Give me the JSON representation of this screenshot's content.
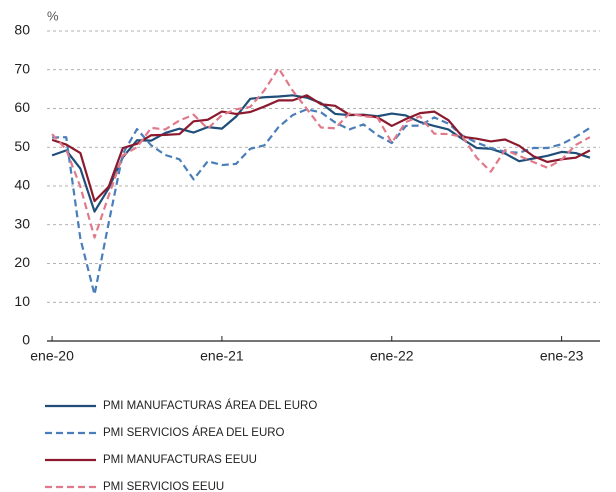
{
  "chart_data": {
    "type": "line",
    "y_label": "%",
    "categories": [
      "ene-20",
      null,
      null,
      null,
      null,
      null,
      null,
      null,
      null,
      null,
      null,
      null,
      "ene-21",
      null,
      null,
      null,
      null,
      null,
      null,
      null,
      null,
      null,
      null,
      null,
      "ene-22",
      null,
      null,
      null,
      null,
      null,
      null,
      null,
      null,
      null,
      null,
      null,
      "ene-23",
      null,
      null
    ],
    "series": [
      {
        "name": "PMI MANUFACTURAS ÁREA DEL EURO",
        "color": "#1f4e79",
        "dashed": false,
        "values": [
          47.9,
          49.2,
          44.5,
          33.4,
          39.4,
          47.4,
          51.8,
          51.7,
          53.7,
          54.8,
          53.8,
          55.2,
          54.8,
          57.9,
          62.5,
          62.9,
          63.1,
          63.4,
          62.8,
          61.4,
          58.6,
          58.3,
          58.4,
          58.0,
          58.7,
          58.2,
          56.5,
          55.5,
          54.6,
          52.1,
          49.8,
          49.6,
          48.4,
          46.4,
          47.1,
          47.8,
          48.8,
          48.5,
          47.3
        ]
      },
      {
        "name": "PMI SERVICIOS ÁREA DEL EURO",
        "color": "#4a7ebb",
        "dashed": true,
        "values": [
          52.5,
          52.6,
          26.4,
          12.0,
          30.5,
          48.3,
          54.7,
          50.5,
          48.0,
          46.9,
          41.7,
          46.4,
          45.4,
          45.7,
          49.6,
          50.5,
          55.2,
          58.3,
          59.8,
          59.0,
          56.4,
          54.6,
          55.9,
          53.1,
          51.1,
          55.5,
          55.6,
          57.7,
          56.1,
          53.0,
          51.2,
          49.8,
          48.8,
          48.6,
          49.8,
          49.8,
          50.8,
          52.7,
          55.0
        ]
      },
      {
        "name": "PMI MANUFACTURAS EEUU",
        "color": "#8b1a2e",
        "dashed": false,
        "values": [
          51.9,
          50.7,
          48.5,
          36.1,
          39.8,
          49.8,
          50.9,
          53.1,
          53.2,
          53.4,
          56.7,
          57.1,
          59.2,
          58.6,
          59.1,
          60.5,
          62.1,
          62.1,
          63.4,
          61.1,
          60.7,
          58.4,
          58.3,
          57.7,
          55.5,
          57.3,
          58.8,
          59.2,
          57.0,
          52.7,
          52.2,
          51.5,
          52.0,
          50.4,
          47.7,
          46.2,
          46.9,
          47.3,
          49.2
        ]
      },
      {
        "name": "PMI SERVICIOS EEUU",
        "color": "#e07a8a",
        "dashed": true,
        "values": [
          53.4,
          49.4,
          39.8,
          26.7,
          37.5,
          47.9,
          50.0,
          55.0,
          54.6,
          56.9,
          58.4,
          54.8,
          58.3,
          59.8,
          60.4,
          64.7,
          70.4,
          64.6,
          59.9,
          55.1,
          54.9,
          58.7,
          58.0,
          57.6,
          51.2,
          56.5,
          58.0,
          53.5,
          53.4,
          52.7,
          47.3,
          43.7,
          49.3,
          47.8,
          46.2,
          44.7,
          46.8,
          50.6,
          52.6
        ]
      }
    ],
    "ylim": [
      0,
      80
    ],
    "yticks": [
      0,
      10,
      20,
      30,
      40,
      50,
      60,
      70,
      80
    ],
    "grid": true,
    "legend": "bottom"
  }
}
